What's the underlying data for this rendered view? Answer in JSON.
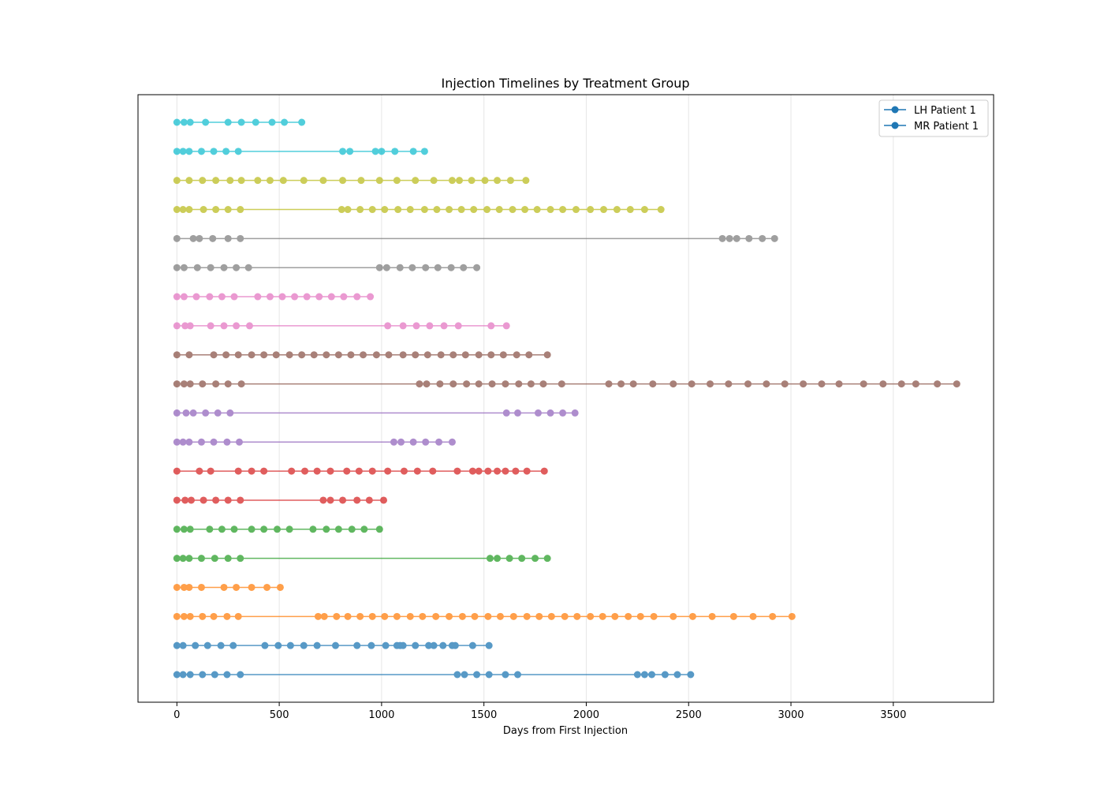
{
  "chart_data": {
    "type": "line",
    "title": "Injection Timelines by Treatment Group",
    "xlabel": "Days from First Injection",
    "ylabel": "",
    "xlim": [
      -190,
      3990
    ],
    "xticks": [
      0,
      500,
      1000,
      1500,
      2000,
      2500,
      3000,
      3500
    ],
    "grid": "x-vertical",
    "legend_placement": "top-right",
    "legend": [
      {
        "label": "LH Patient 1",
        "color": "#1f77b4"
      },
      {
        "label": "MR Patient 1",
        "color": "#1f77b4"
      }
    ],
    "series": [
      {
        "color": "#1f77b4",
        "x": [
          0,
          30,
          65,
          125,
          185,
          245,
          310,
          1370,
          1405,
          1465,
          1525,
          1605,
          1665,
          2250,
          2285,
          2320,
          2385,
          2445,
          2510
        ]
      },
      {
        "color": "#1f77b4",
        "x": [
          0,
          30,
          90,
          150,
          215,
          275,
          430,
          495,
          555,
          620,
          685,
          775,
          880,
          950,
          1020,
          1075,
          1090,
          1105,
          1165,
          1230,
          1255,
          1300,
          1345,
          1360,
          1445,
          1525
        ]
      },
      {
        "color": "#ff7f0e",
        "x": [
          0,
          35,
          65,
          125,
          180,
          245,
          300,
          690,
          720,
          780,
          835,
          895,
          955,
          1015,
          1075,
          1140,
          1200,
          1265,
          1330,
          1395,
          1455,
          1520,
          1580,
          1645,
          1710,
          1770,
          1830,
          1895,
          1955,
          2020,
          2080,
          2140,
          2205,
          2265,
          2330,
          2425,
          2520,
          2615,
          2720,
          2815,
          2910,
          3005
        ]
      },
      {
        "color": "#ff7f0e",
        "x": [
          0,
          35,
          60,
          120,
          230,
          290,
          365,
          440,
          505
        ]
      },
      {
        "color": "#2ca02c",
        "x": [
          0,
          30,
          60,
          120,
          185,
          250,
          310,
          1530,
          1565,
          1625,
          1685,
          1750,
          1810
        ]
      },
      {
        "color": "#2ca02c",
        "x": [
          0,
          35,
          65,
          160,
          220,
          280,
          365,
          425,
          490,
          550,
          665,
          730,
          790,
          855,
          915,
          990
        ]
      },
      {
        "color": "#d62728",
        "x": [
          0,
          40,
          70,
          130,
          190,
          250,
          310,
          715,
          750,
          810,
          880,
          940,
          1010
        ]
      },
      {
        "color": "#d62728",
        "x": [
          0,
          110,
          165,
          300,
          365,
          425,
          560,
          625,
          685,
          750,
          830,
          890,
          955,
          1030,
          1110,
          1175,
          1250,
          1370,
          1445,
          1475,
          1520,
          1565,
          1605,
          1655,
          1710,
          1795
        ]
      },
      {
        "color": "#9467bd",
        "x": [
          0,
          30,
          60,
          120,
          180,
          245,
          305,
          1060,
          1095,
          1155,
          1215,
          1280,
          1345
        ]
      },
      {
        "color": "#9467bd",
        "x": [
          0,
          45,
          80,
          140,
          200,
          260,
          1610,
          1665,
          1765,
          1825,
          1885,
          1945
        ]
      },
      {
        "color": "#8c564b",
        "x": [
          0,
          35,
          65,
          125,
          190,
          250,
          315,
          1185,
          1220,
          1285,
          1350,
          1415,
          1475,
          1540,
          1605,
          1670,
          1730,
          1790,
          1880,
          2110,
          2170,
          2230,
          2325,
          2425,
          2515,
          2605,
          2695,
          2790,
          2880,
          2970,
          3060,
          3150,
          3235,
          3355,
          3450,
          3540,
          3610,
          3715,
          3810
        ]
      },
      {
        "color": "#8c564b",
        "x": [
          0,
          60,
          180,
          240,
          300,
          365,
          425,
          485,
          550,
          610,
          670,
          730,
          790,
          850,
          910,
          975,
          1035,
          1105,
          1165,
          1225,
          1290,
          1350,
          1410,
          1475,
          1535,
          1595,
          1660,
          1720,
          1810
        ]
      },
      {
        "color": "#e377c2",
        "x": [
          0,
          40,
          65,
          165,
          230,
          290,
          355,
          1030,
          1105,
          1170,
          1235,
          1305,
          1375,
          1535,
          1610
        ]
      },
      {
        "color": "#e377c2",
        "x": [
          0,
          35,
          95,
          160,
          220,
          280,
          395,
          455,
          515,
          575,
          635,
          695,
          755,
          815,
          880,
          945
        ]
      },
      {
        "color": "#7f7f7f",
        "x": [
          0,
          35,
          100,
          165,
          230,
          290,
          350,
          990,
          1025,
          1090,
          1150,
          1215,
          1275,
          1340,
          1400,
          1465
        ]
      },
      {
        "color": "#7f7f7f",
        "x": [
          0,
          80,
          110,
          175,
          250,
          310,
          2665,
          2700,
          2735,
          2795,
          2860,
          2920
        ]
      },
      {
        "color": "#bcbd22",
        "x": [
          0,
          30,
          60,
          130,
          190,
          250,
          310,
          805,
          835,
          895,
          955,
          1015,
          1080,
          1140,
          1210,
          1270,
          1330,
          1390,
          1450,
          1515,
          1575,
          1640,
          1700,
          1760,
          1825,
          1885,
          1950,
          2020,
          2085,
          2150,
          2215,
          2285,
          2365
        ]
      },
      {
        "color": "#bcbd22",
        "x": [
          0,
          60,
          125,
          190,
          260,
          315,
          395,
          455,
          520,
          620,
          715,
          810,
          900,
          990,
          1075,
          1165,
          1255,
          1345,
          1380,
          1440,
          1505,
          1565,
          1630,
          1705
        ]
      },
      {
        "color": "#17becf",
        "x": [
          0,
          30,
          60,
          120,
          180,
          240,
          300,
          810,
          845,
          970,
          1000,
          1065,
          1155,
          1210
        ]
      },
      {
        "color": "#17becf",
        "x": [
          0,
          35,
          65,
          140,
          250,
          315,
          385,
          465,
          525,
          610
        ]
      }
    ]
  }
}
